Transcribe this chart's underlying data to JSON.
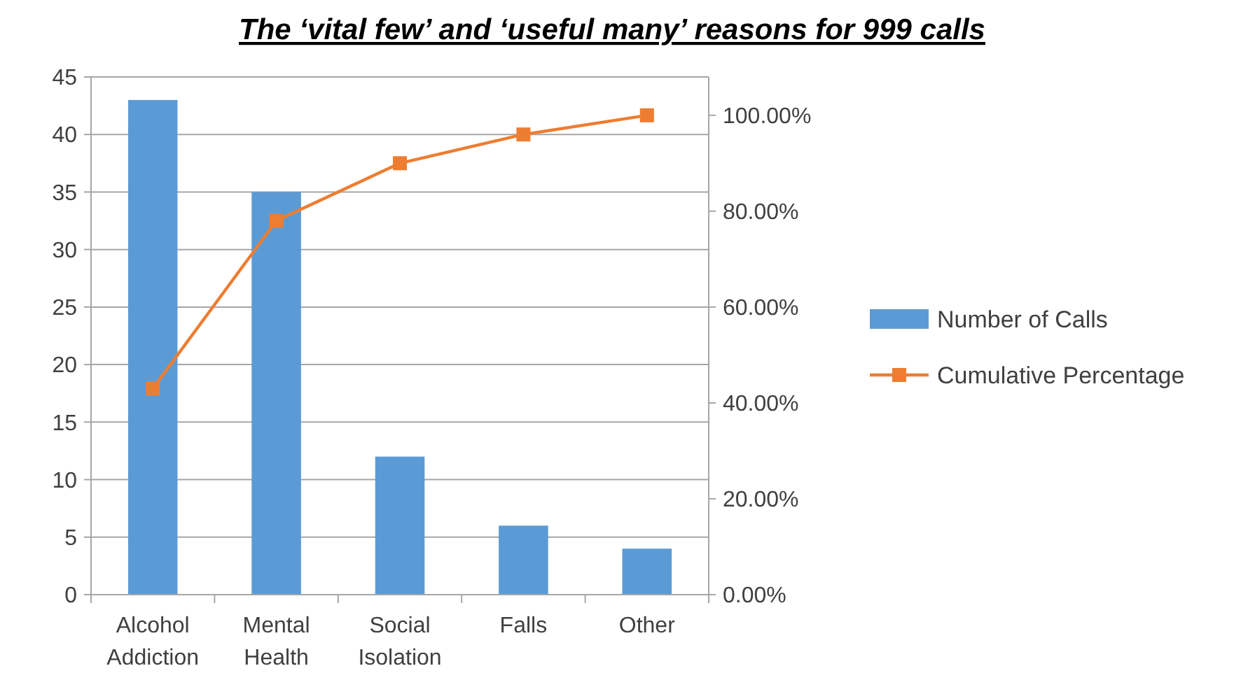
{
  "chart_data": {
    "type": "bar",
    "title": "The ‘vital few’ and ‘useful many’ reasons for 999 calls",
    "categories": [
      "Alcohol Addiction",
      "Mental Health",
      "Social Isolation",
      "Falls",
      "Other"
    ],
    "series": [
      {
        "name": "Number of Calls",
        "color": "#5b9bd5",
        "values": [
          43,
          35,
          12,
          6,
          4
        ]
      },
      {
        "name": "Cumulative Percentage",
        "type": "line",
        "axis": "y2",
        "color": "#ed7d31",
        "marker": "square",
        "values": [
          43,
          78,
          90,
          96,
          100
        ]
      }
    ],
    "ylim": [
      0,
      45
    ],
    "yticks": [
      0,
      5,
      10,
      15,
      20,
      25,
      30,
      35,
      40,
      45
    ],
    "y2lim": [
      0,
      108
    ],
    "y2ticks": [
      {
        "value": 0,
        "label": "0.00%"
      },
      {
        "value": 20,
        "label": "20.00%"
      },
      {
        "value": 40,
        "label": "40.00%"
      },
      {
        "value": 60,
        "label": "60.00%"
      },
      {
        "value": 80,
        "label": "80.00%"
      },
      {
        "value": 100,
        "label": "100.00%"
      }
    ],
    "grid": "y",
    "legend": "right"
  }
}
